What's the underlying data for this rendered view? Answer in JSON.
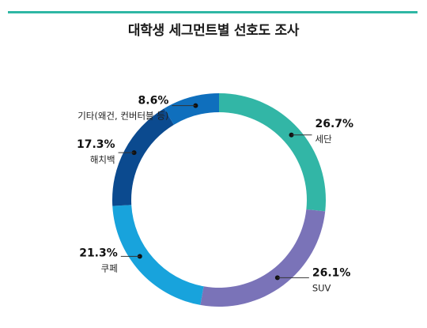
{
  "accent_color": "#2fb7a4",
  "chart_data": {
    "type": "pie",
    "style": "donut",
    "title": "대학생 세그먼트별 선호도 조사",
    "unit": "%",
    "slices": [
      {
        "label": "세단",
        "value": 26.7,
        "value_label": "26.7%",
        "color": "#32b6a6"
      },
      {
        "label": "SUV",
        "value": 26.1,
        "value_label": "26.1%",
        "color": "#7a73b8"
      },
      {
        "label": "쿠페",
        "value": 21.3,
        "value_label": "21.3%",
        "color": "#18a3dc"
      },
      {
        "label": "해치백",
        "value": 17.3,
        "value_label": "17.3%",
        "color": "#0b4a8f"
      },
      {
        "label": "기타(왜건, 컨버터블 등)",
        "value": 8.6,
        "value_label": "8.6%",
        "color": "#0f6fbd"
      }
    ]
  }
}
